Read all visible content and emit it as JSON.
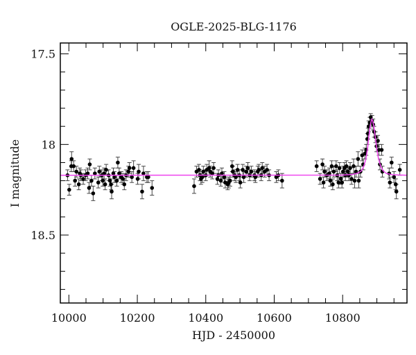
{
  "chart_data": {
    "type": "scatter",
    "title": "OGLE-2025-BLG-1176",
    "xlabel": "HJD - 2450000",
    "ylabel": "I magnitude",
    "xlim": [
      9975,
      10988
    ],
    "ylim": [
      18.875,
      17.44
    ],
    "y_inverted": true,
    "x_ticks": [
      10000,
      10200,
      10400,
      10600,
      10800
    ],
    "x_tick_labels": [
      "10000",
      "10200",
      "10400",
      "10600",
      "10800"
    ],
    "y_ticks": [
      17.5,
      18,
      18.5
    ],
    "y_tick_labels": [
      "17.5",
      "18",
      "18.5"
    ],
    "grid": false,
    "colors": {
      "points": "#000000",
      "errorbars": "#444444",
      "model": "#ee44ee"
    },
    "series": [
      {
        "type": "scatter_errorbar",
        "points": [
          [
            9996,
            18.17,
            0.03
          ],
          [
            10001,
            18.25,
            0.03
          ],
          [
            10008,
            18.08,
            0.04
          ],
          [
            10007,
            18.12,
            0.03
          ],
          [
            10014,
            18.12,
            0.03
          ],
          [
            10018,
            18.2,
            0.03
          ],
          [
            10022,
            18.15,
            0.03
          ],
          [
            10029,
            18.22,
            0.03
          ],
          [
            10032,
            18.16,
            0.03
          ],
          [
            10035,
            18.17,
            0.03
          ],
          [
            10042,
            18.19,
            0.03
          ],
          [
            10049,
            18.17,
            0.03
          ],
          [
            10055,
            18.16,
            0.03
          ],
          [
            10061,
            18.11,
            0.03
          ],
          [
            10059,
            18.24,
            0.03
          ],
          [
            10066,
            18.2,
            0.03
          ],
          [
            10071,
            18.27,
            0.04
          ],
          [
            10076,
            18.16,
            0.03
          ],
          [
            10086,
            18.21,
            0.03
          ],
          [
            10089,
            18.15,
            0.03
          ],
          [
            10096,
            18.17,
            0.03
          ],
          [
            10099,
            18.2,
            0.03
          ],
          [
            10103,
            18.16,
            0.03
          ],
          [
            10106,
            18.22,
            0.03
          ],
          [
            10109,
            18.14,
            0.03
          ],
          [
            10116,
            18.17,
            0.03
          ],
          [
            10120,
            18.2,
            0.03
          ],
          [
            10123,
            18.22,
            0.03
          ],
          [
            10125,
            18.26,
            0.04
          ],
          [
            10130,
            18.16,
            0.03
          ],
          [
            10133,
            18.18,
            0.03
          ],
          [
            10140,
            18.2,
            0.03
          ],
          [
            10143,
            18.1,
            0.03
          ],
          [
            10147,
            18.16,
            0.03
          ],
          [
            10153,
            18.18,
            0.03
          ],
          [
            10158,
            18.19,
            0.03
          ],
          [
            10162,
            18.22,
            0.03
          ],
          [
            10167,
            18.17,
            0.03
          ],
          [
            10174,
            18.15,
            0.03
          ],
          [
            10177,
            18.13,
            0.03
          ],
          [
            10184,
            18.18,
            0.03
          ],
          [
            10189,
            18.13,
            0.04
          ],
          [
            10201,
            18.19,
            0.03
          ],
          [
            10204,
            18.15,
            0.04
          ],
          [
            10214,
            18.26,
            0.04
          ],
          [
            10218,
            18.16,
            0.04
          ],
          [
            10228,
            18.18,
            0.03
          ],
          [
            10232,
            18.18,
            0.03
          ],
          [
            10243,
            18.24,
            0.04
          ],
          [
            10366,
            18.23,
            0.04
          ],
          [
            10373,
            18.15,
            0.03
          ],
          [
            10380,
            18.14,
            0.03
          ],
          [
            10383,
            18.17,
            0.03
          ],
          [
            10386,
            18.19,
            0.03
          ],
          [
            10390,
            18.18,
            0.03
          ],
          [
            10393,
            18.15,
            0.03
          ],
          [
            10400,
            18.17,
            0.03
          ],
          [
            10403,
            18.14,
            0.03
          ],
          [
            10410,
            18.13,
            0.04
          ],
          [
            10413,
            18.15,
            0.03
          ],
          [
            10419,
            18.16,
            0.03
          ],
          [
            10423,
            18.13,
            0.03
          ],
          [
            10434,
            18.19,
            0.03
          ],
          [
            10437,
            18.17,
            0.03
          ],
          [
            10444,
            18.2,
            0.03
          ],
          [
            10447,
            18.16,
            0.03
          ],
          [
            10454,
            18.18,
            0.03
          ],
          [
            10457,
            18.21,
            0.03
          ],
          [
            10464,
            18.22,
            0.03
          ],
          [
            10467,
            18.21,
            0.03
          ],
          [
            10471,
            18.2,
            0.03
          ],
          [
            10477,
            18.12,
            0.03
          ],
          [
            10479,
            18.15,
            0.03
          ],
          [
            10484,
            18.17,
            0.03
          ],
          [
            10488,
            18.18,
            0.03
          ],
          [
            10493,
            18.14,
            0.03
          ],
          [
            10498,
            18.17,
            0.03
          ],
          [
            10501,
            18.21,
            0.03
          ],
          [
            10508,
            18.14,
            0.03
          ],
          [
            10511,
            18.18,
            0.03
          ],
          [
            10518,
            18.15,
            0.03
          ],
          [
            10523,
            18.13,
            0.03
          ],
          [
            10528,
            18.17,
            0.03
          ],
          [
            10533,
            18.15,
            0.03
          ],
          [
            10542,
            18.17,
            0.03
          ],
          [
            10545,
            18.18,
            0.03
          ],
          [
            10552,
            18.15,
            0.03
          ],
          [
            10555,
            18.14,
            0.03
          ],
          [
            10562,
            18.17,
            0.03
          ],
          [
            10565,
            18.13,
            0.03
          ],
          [
            10572,
            18.15,
            0.03
          ],
          [
            10579,
            18.14,
            0.03
          ],
          [
            10585,
            18.17,
            0.03
          ],
          [
            10606,
            18.18,
            0.03
          ],
          [
            10612,
            18.17,
            0.03
          ],
          [
            10623,
            18.2,
            0.04
          ],
          [
            10724,
            18.12,
            0.03
          ],
          [
            10734,
            18.19,
            0.03
          ],
          [
            10741,
            18.11,
            0.03
          ],
          [
            10744,
            18.21,
            0.03
          ],
          [
            10747,
            18.15,
            0.03
          ],
          [
            10754,
            18.17,
            0.03
          ],
          [
            10761,
            18.16,
            0.03
          ],
          [
            10764,
            18.2,
            0.03
          ],
          [
            10768,
            18.12,
            0.03
          ],
          [
            10771,
            18.22,
            0.03
          ],
          [
            10774,
            18.15,
            0.03
          ],
          [
            10781,
            18.12,
            0.03
          ],
          [
            10784,
            18.17,
            0.03
          ],
          [
            10788,
            18.21,
            0.03
          ],
          [
            10791,
            18.13,
            0.03
          ],
          [
            10795,
            18.19,
            0.03
          ],
          [
            10798,
            18.21,
            0.03
          ],
          [
            10801,
            18.15,
            0.03
          ],
          [
            10805,
            18.13,
            0.03
          ],
          [
            10808,
            18.17,
            0.03
          ],
          [
            10811,
            18.12,
            0.03
          ],
          [
            10815,
            18.15,
            0.03
          ],
          [
            10818,
            18.17,
            0.03
          ],
          [
            10822,
            18.13,
            0.03
          ],
          [
            10826,
            18.19,
            0.03
          ],
          [
            10832,
            18.12,
            0.04
          ],
          [
            10835,
            18.2,
            0.04
          ],
          [
            10839,
            18.15,
            0.03
          ],
          [
            10845,
            18.08,
            0.04
          ],
          [
            10847,
            18.2,
            0.04
          ],
          [
            10852,
            18.15,
            0.03
          ],
          [
            10857,
            18.06,
            0.03
          ],
          [
            10860,
            18.11,
            0.03
          ],
          [
            10865,
            18.05,
            0.03
          ],
          [
            10869,
            18.03,
            0.03
          ],
          [
            10872,
            17.97,
            0.03
          ],
          [
            10874,
            17.94,
            0.03
          ],
          [
            10876,
            17.9,
            0.03
          ],
          [
            10879,
            17.88,
            0.03
          ],
          [
            10882,
            17.85,
            0.02
          ],
          [
            10886,
            17.87,
            0.03
          ],
          [
            10889,
            17.89,
            0.03
          ],
          [
            10892,
            17.93,
            0.03
          ],
          [
            10896,
            17.96,
            0.03
          ],
          [
            10899,
            18.01,
            0.03
          ],
          [
            10903,
            17.98,
            0.03
          ],
          [
            10906,
            18.03,
            0.03
          ],
          [
            10909,
            18.11,
            0.03
          ],
          [
            10914,
            18.03,
            0.03
          ],
          [
            10916,
            18.15,
            0.03
          ],
          [
            10936,
            18.16,
            0.03
          ],
          [
            10938,
            18.21,
            0.03
          ],
          [
            10943,
            18.1,
            0.03
          ],
          [
            10950,
            18.18,
            0.03
          ],
          [
            10955,
            18.22,
            0.03
          ],
          [
            10957,
            18.26,
            0.04
          ],
          [
            10967,
            18.14,
            0.03
          ]
        ]
      },
      {
        "type": "line",
        "points": [
          [
            9975,
            18.17
          ],
          [
            10800,
            18.169
          ],
          [
            10830,
            18.165
          ],
          [
            10845,
            18.158
          ],
          [
            10855,
            18.145
          ],
          [
            10862,
            18.12
          ],
          [
            10868,
            18.08
          ],
          [
            10873,
            18.02
          ],
          [
            10877,
            17.95
          ],
          [
            10881,
            17.89
          ],
          [
            10885,
            17.86
          ],
          [
            10888,
            17.87
          ],
          [
            10892,
            17.91
          ],
          [
            10896,
            17.97
          ],
          [
            10900,
            18.03
          ],
          [
            10905,
            18.08
          ],
          [
            10911,
            18.12
          ],
          [
            10918,
            18.145
          ],
          [
            10928,
            18.16
          ],
          [
            10945,
            18.167
          ],
          [
            10988,
            18.17
          ]
        ]
      }
    ]
  }
}
